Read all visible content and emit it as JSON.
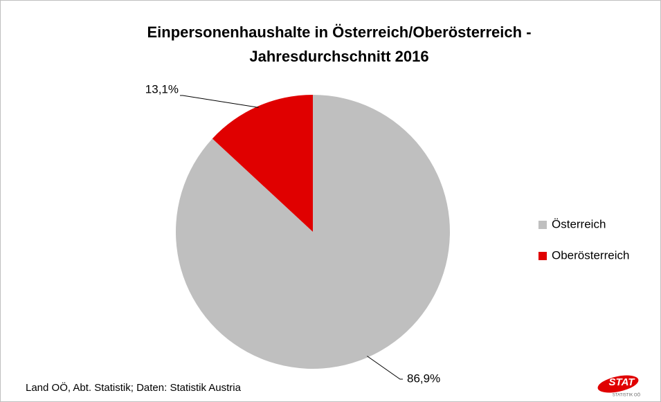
{
  "chart_data": {
    "type": "pie",
    "title": [
      "Einpersonenhaushalte in Österreich/Oberösterreich -",
      "Jahresdurchschnitt 2016"
    ],
    "categories": [
      "Österreich",
      "Oberösterreich"
    ],
    "values": [
      86.9,
      13.1
    ],
    "value_labels": [
      "86,9%",
      "13,1%"
    ],
    "colors": [
      "#bfbfbf",
      "#e00000"
    ],
    "legend": "right",
    "source": "Land OÖ, Abt. Statistik; Daten: Statistik Austria",
    "logo": {
      "text": "STAT",
      "subtext": "STATISTIK OÖ"
    }
  }
}
